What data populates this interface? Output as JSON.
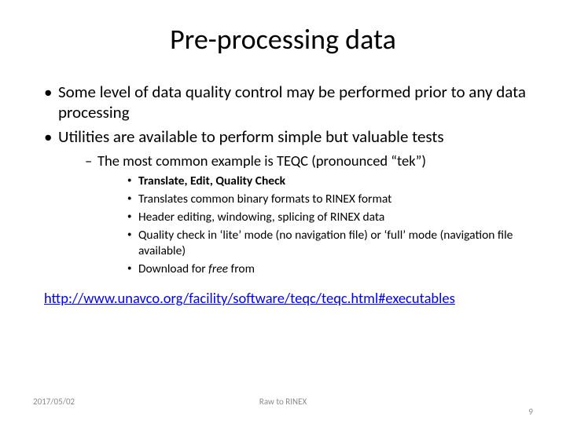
{
  "title": "Pre-processing data",
  "bullets": {
    "b1": "Some level of data quality control may be performed prior to any data processing",
    "b2": "Utilities are available to perform simple but valuable tests",
    "b2_1": "The most common example is TEQC (pronounced “tek”)",
    "b2_1_1_bold": "Translate, Edit, Quality Check",
    "b2_1_2": "Translates common  binary formats to RINEX format",
    "b2_1_3": "Header editing, windowing, splicing of RINEX data",
    "b2_1_4": "Quality check in ‘lite’ mode (no navigation file) or ‘full’ mode (navigation file available)",
    "b2_1_5_pre": "Download for ",
    "b2_1_5_italic": "free",
    "b2_1_5_post": " from"
  },
  "link_text": "http://www.unavco.org/facility/software/teqc/teqc.html#executables",
  "footer": {
    "date": "2017/05/02",
    "center": "Raw to RINEX",
    "page": "9"
  },
  "colors": {
    "text": "#000000",
    "link": "#0000ee",
    "footer": "#8a8a8a",
    "background": "#ffffff"
  }
}
